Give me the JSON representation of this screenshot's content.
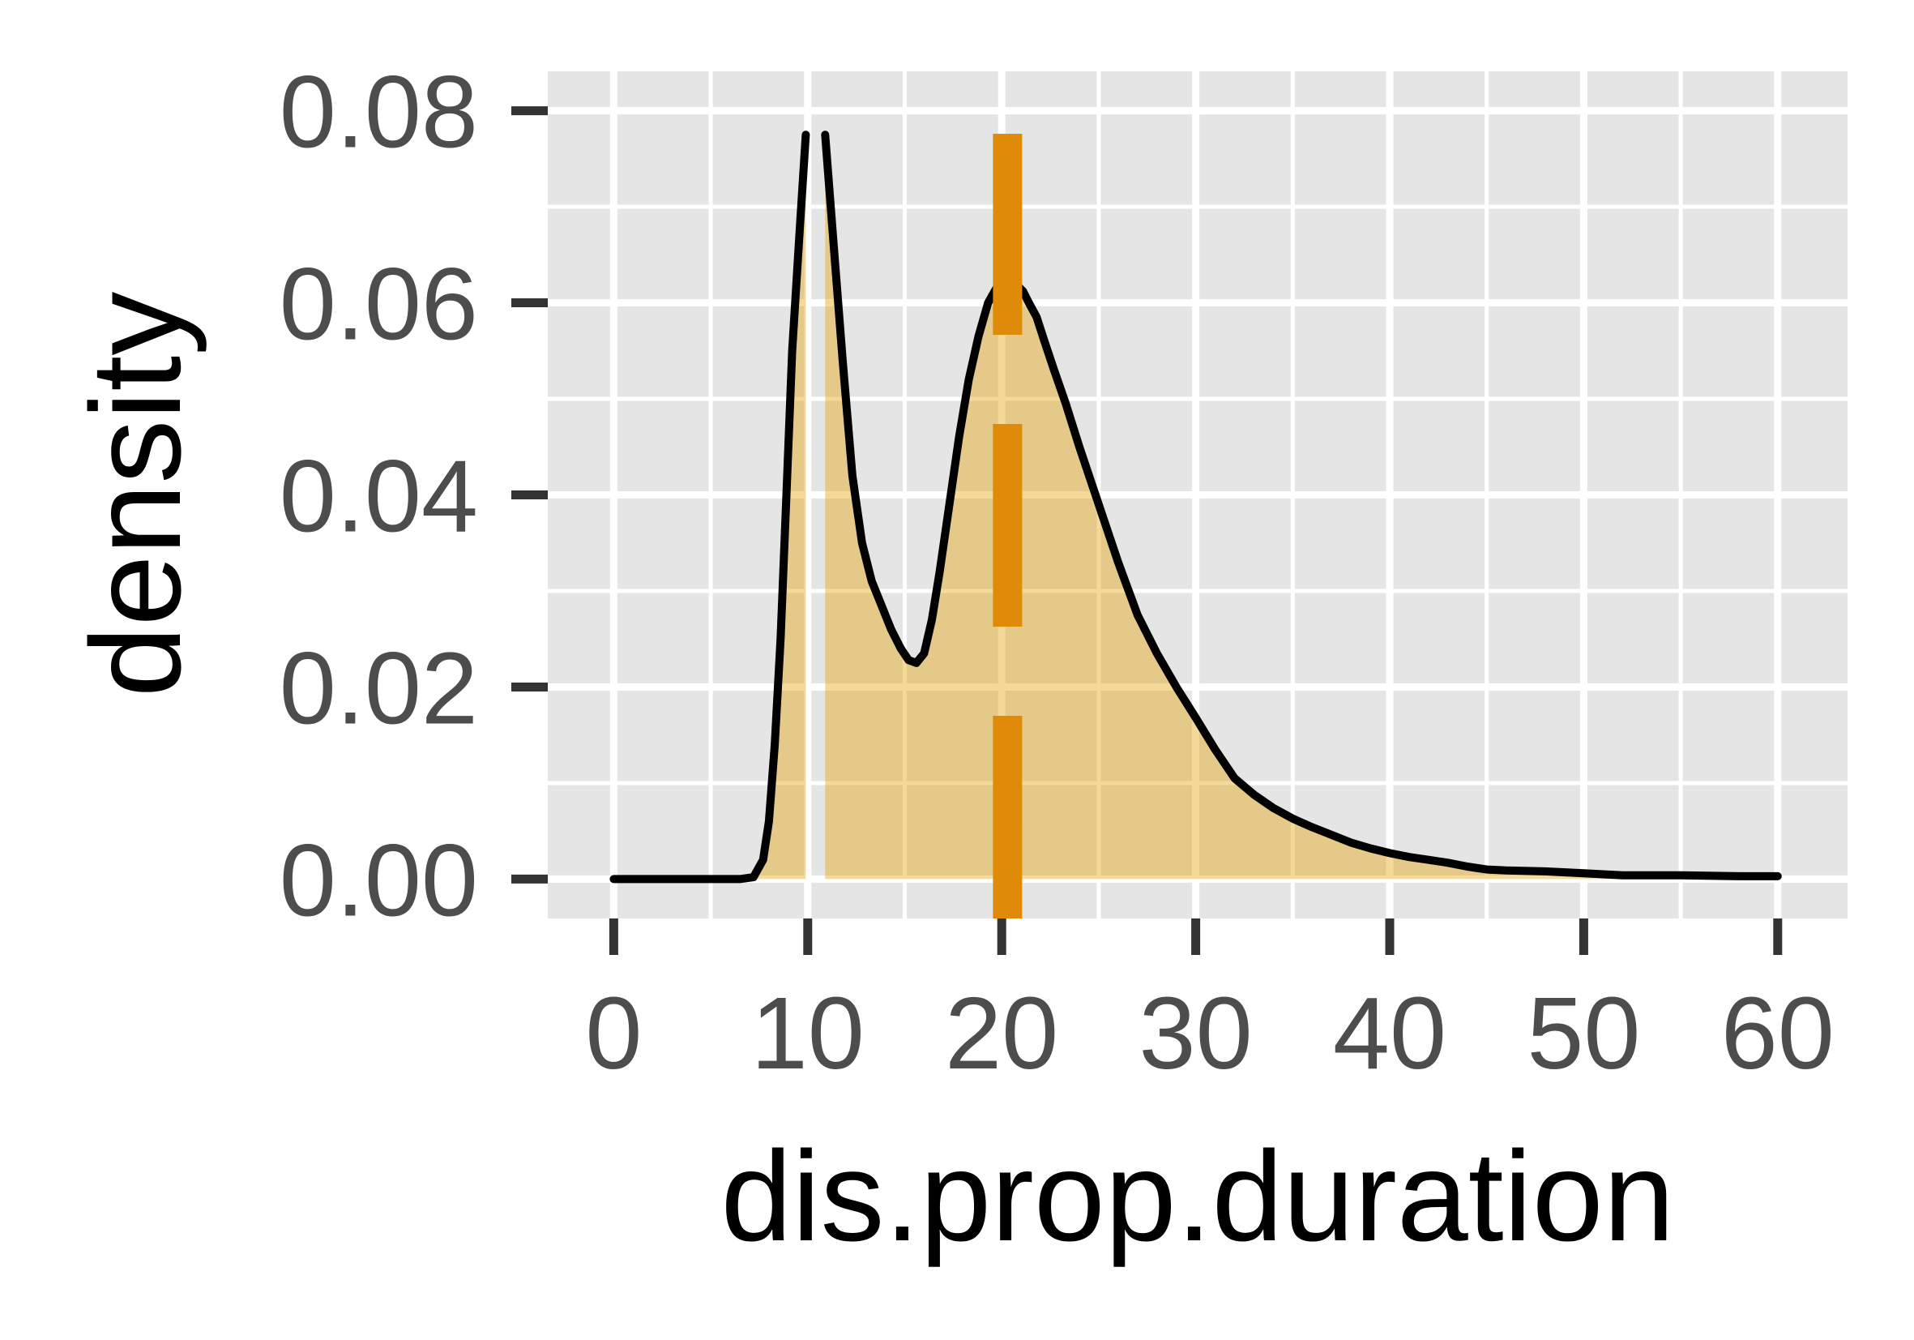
{
  "chart_data": {
    "type": "area",
    "title": "",
    "xlabel": "dis.prop.duration",
    "ylabel": "density",
    "xlim": [
      -3.4,
      63.6
    ],
    "ylim": [
      -0.0041,
      0.0841
    ],
    "x_ticks": [
      0,
      10,
      20,
      30,
      40,
      50,
      60
    ],
    "x_tick_labels": [
      "0",
      "10",
      "20",
      "30",
      "40",
      "50",
      "60"
    ],
    "y_ticks": [
      0.0,
      0.02,
      0.04,
      0.06,
      0.08
    ],
    "y_tick_labels": [
      "0.00",
      "0.02",
      "0.04",
      "0.06",
      "0.08"
    ],
    "grid": true,
    "colors": {
      "panel_background": "#e5e5e5",
      "grid": "#ffffff",
      "fill": "#e69f00",
      "line": "#000000",
      "reference_line": "#e08a0a",
      "tick_label": "#4d4d4d",
      "axis_title": "#000000"
    },
    "series": [
      {
        "x": [
          0,
          5,
          6.5,
          7.2,
          7.7,
          8.0,
          8.3,
          8.6,
          8.9,
          9.2,
          9.6,
          9.9
        ],
        "y": [
          0,
          0,
          0,
          0.0002,
          0.002,
          0.006,
          0.014,
          0.025,
          0.04,
          0.055,
          0.068,
          0.0775
        ]
      },
      {
        "x": [
          10.9,
          11.3,
          11.8,
          12.3,
          12.8,
          13.3,
          13.8,
          14.3,
          14.8,
          15.2,
          15.6,
          16.0,
          16.4,
          16.8,
          17.3,
          17.8,
          18.3,
          18.8,
          19.3,
          19.8,
          20.3,
          20.7,
          21.1,
          21.4,
          21.8,
          22.2,
          22.7,
          23.3,
          24,
          25,
          26,
          27,
          28,
          29,
          30,
          31,
          32,
          33,
          34,
          35,
          36,
          37,
          38,
          39,
          40,
          41,
          42,
          43,
          44,
          45,
          46,
          48,
          50,
          52,
          55,
          58,
          60
        ],
        "y": [
          0.0775,
          0.067,
          0.054,
          0.042,
          0.035,
          0.031,
          0.0285,
          0.026,
          0.024,
          0.0228,
          0.0225,
          0.0235,
          0.027,
          0.032,
          0.039,
          0.046,
          0.052,
          0.0565,
          0.06,
          0.0618,
          0.0622,
          0.062,
          0.0612,
          0.06,
          0.0585,
          0.056,
          0.053,
          0.0495,
          0.045,
          0.039,
          0.033,
          0.0275,
          0.0235,
          0.02,
          0.0168,
          0.0135,
          0.0105,
          0.0088,
          0.0074,
          0.0063,
          0.0054,
          0.0046,
          0.0038,
          0.0032,
          0.0027,
          0.0023,
          0.002,
          0.0017,
          0.0013,
          0.001,
          0.0009,
          0.0008,
          0.0006,
          0.0004,
          0.0004,
          0.0003,
          0.0003
        ]
      }
    ],
    "reference_line": {
      "x": 20.3,
      "style": "dashed"
    }
  }
}
